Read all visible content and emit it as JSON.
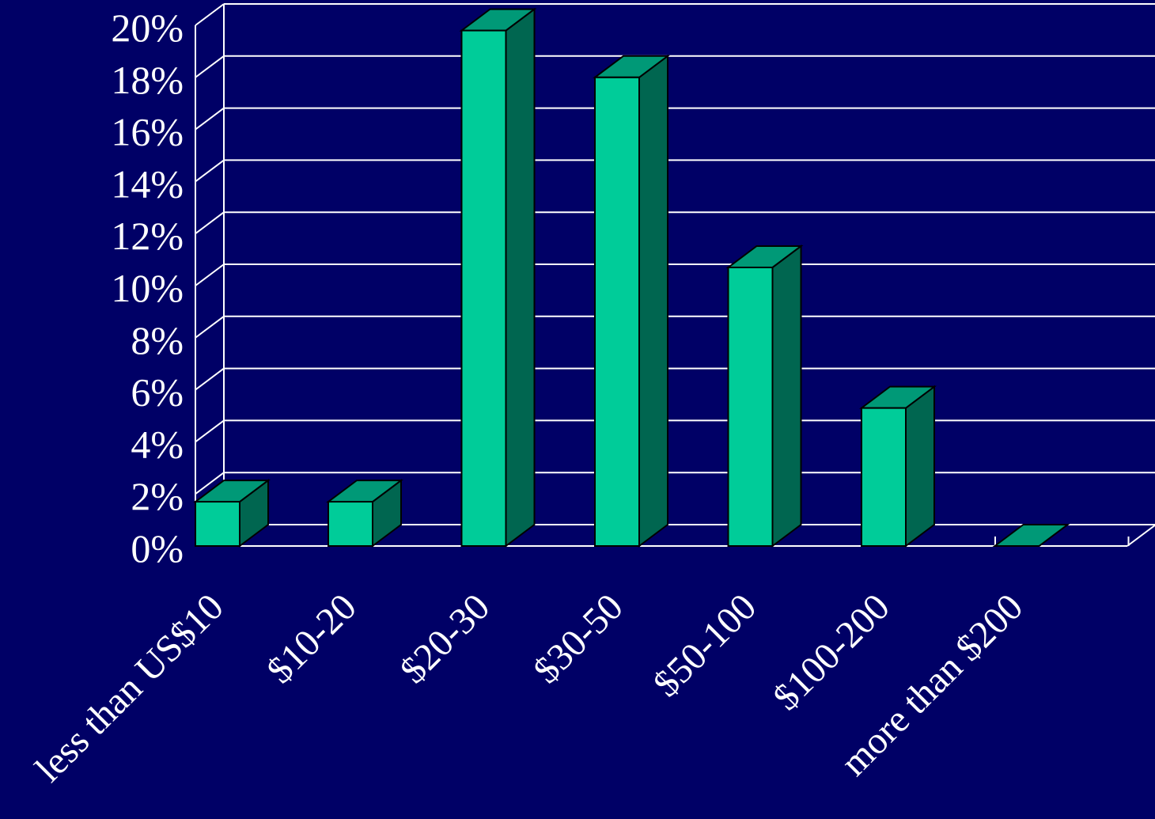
{
  "chart_data": {
    "type": "bar",
    "style": "3d-column",
    "title": "",
    "xlabel": "",
    "ylabel": "",
    "categories": [
      "less than US$10",
      "$10-20",
      "$20-30",
      "$30-50",
      "$50-100",
      "$100-200",
      "more than $200"
    ],
    "values": [
      1.7,
      1.7,
      19.8,
      18.0,
      10.7,
      5.3,
      0.0
    ],
    "ylim": [
      0,
      20
    ],
    "ytick_labels": [
      "0%",
      "2%",
      "4%",
      "6%",
      "8%",
      "10%",
      "12%",
      "14%",
      "16%",
      "18%",
      "20%"
    ],
    "grid": true,
    "legend": "none"
  },
  "colors": {
    "background": "#000066",
    "bar_front": "#00CC99",
    "bar_top": "#009977",
    "bar_side": "#006650",
    "grid": "#FFFFFF",
    "text": "#FFFFFF"
  }
}
